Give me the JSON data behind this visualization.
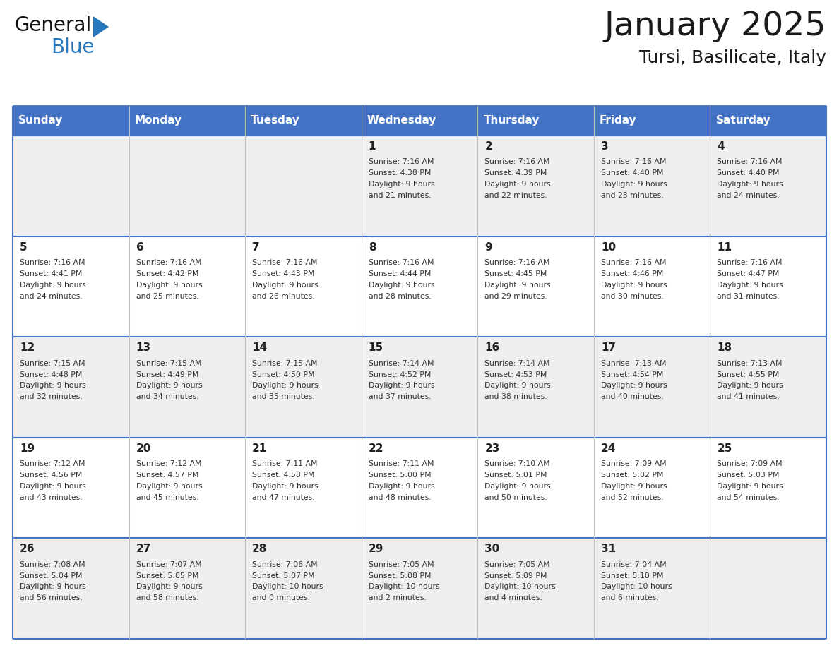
{
  "title": "January 2025",
  "subtitle": "Tursi, Basilicate, Italy",
  "days_of_week": [
    "Sunday",
    "Monday",
    "Tuesday",
    "Wednesday",
    "Thursday",
    "Friday",
    "Saturday"
  ],
  "header_bg_color": "#4472C4",
  "header_text_color": "#FFFFFF",
  "cell_bg_white": "#FFFFFF",
  "cell_bg_grey": "#EFEFEF",
  "grid_line_color": "#4472C4",
  "col_line_color": "#C0C0C0",
  "day_num_color": "#222222",
  "text_color": "#333333",
  "title_color": "#1a1a1a",
  "logo_general_color": "#111111",
  "logo_blue_color": "#2878BE",
  "logo_triangle_color": "#2878BE",
  "calendar_data": [
    {
      "day": 1,
      "col": 3,
      "row": 0,
      "sunrise": "7:16 AM",
      "sunset": "4:38 PM",
      "daylight_hours": 9,
      "daylight_minutes": 21
    },
    {
      "day": 2,
      "col": 4,
      "row": 0,
      "sunrise": "7:16 AM",
      "sunset": "4:39 PM",
      "daylight_hours": 9,
      "daylight_minutes": 22
    },
    {
      "day": 3,
      "col": 5,
      "row": 0,
      "sunrise": "7:16 AM",
      "sunset": "4:40 PM",
      "daylight_hours": 9,
      "daylight_minutes": 23
    },
    {
      "day": 4,
      "col": 6,
      "row": 0,
      "sunrise": "7:16 AM",
      "sunset": "4:40 PM",
      "daylight_hours": 9,
      "daylight_minutes": 24
    },
    {
      "day": 5,
      "col": 0,
      "row": 1,
      "sunrise": "7:16 AM",
      "sunset": "4:41 PM",
      "daylight_hours": 9,
      "daylight_minutes": 24
    },
    {
      "day": 6,
      "col": 1,
      "row": 1,
      "sunrise": "7:16 AM",
      "sunset": "4:42 PM",
      "daylight_hours": 9,
      "daylight_minutes": 25
    },
    {
      "day": 7,
      "col": 2,
      "row": 1,
      "sunrise": "7:16 AM",
      "sunset": "4:43 PM",
      "daylight_hours": 9,
      "daylight_minutes": 26
    },
    {
      "day": 8,
      "col": 3,
      "row": 1,
      "sunrise": "7:16 AM",
      "sunset": "4:44 PM",
      "daylight_hours": 9,
      "daylight_minutes": 28
    },
    {
      "day": 9,
      "col": 4,
      "row": 1,
      "sunrise": "7:16 AM",
      "sunset": "4:45 PM",
      "daylight_hours": 9,
      "daylight_minutes": 29
    },
    {
      "day": 10,
      "col": 5,
      "row": 1,
      "sunrise": "7:16 AM",
      "sunset": "4:46 PM",
      "daylight_hours": 9,
      "daylight_minutes": 30
    },
    {
      "day": 11,
      "col": 6,
      "row": 1,
      "sunrise": "7:16 AM",
      "sunset": "4:47 PM",
      "daylight_hours": 9,
      "daylight_minutes": 31
    },
    {
      "day": 12,
      "col": 0,
      "row": 2,
      "sunrise": "7:15 AM",
      "sunset": "4:48 PM",
      "daylight_hours": 9,
      "daylight_minutes": 32
    },
    {
      "day": 13,
      "col": 1,
      "row": 2,
      "sunrise": "7:15 AM",
      "sunset": "4:49 PM",
      "daylight_hours": 9,
      "daylight_minutes": 34
    },
    {
      "day": 14,
      "col": 2,
      "row": 2,
      "sunrise": "7:15 AM",
      "sunset": "4:50 PM",
      "daylight_hours": 9,
      "daylight_minutes": 35
    },
    {
      "day": 15,
      "col": 3,
      "row": 2,
      "sunrise": "7:14 AM",
      "sunset": "4:52 PM",
      "daylight_hours": 9,
      "daylight_minutes": 37
    },
    {
      "day": 16,
      "col": 4,
      "row": 2,
      "sunrise": "7:14 AM",
      "sunset": "4:53 PM",
      "daylight_hours": 9,
      "daylight_minutes": 38
    },
    {
      "day": 17,
      "col": 5,
      "row": 2,
      "sunrise": "7:13 AM",
      "sunset": "4:54 PM",
      "daylight_hours": 9,
      "daylight_minutes": 40
    },
    {
      "day": 18,
      "col": 6,
      "row": 2,
      "sunrise": "7:13 AM",
      "sunset": "4:55 PM",
      "daylight_hours": 9,
      "daylight_minutes": 41
    },
    {
      "day": 19,
      "col": 0,
      "row": 3,
      "sunrise": "7:12 AM",
      "sunset": "4:56 PM",
      "daylight_hours": 9,
      "daylight_minutes": 43
    },
    {
      "day": 20,
      "col": 1,
      "row": 3,
      "sunrise": "7:12 AM",
      "sunset": "4:57 PM",
      "daylight_hours": 9,
      "daylight_minutes": 45
    },
    {
      "day": 21,
      "col": 2,
      "row": 3,
      "sunrise": "7:11 AM",
      "sunset": "4:58 PM",
      "daylight_hours": 9,
      "daylight_minutes": 47
    },
    {
      "day": 22,
      "col": 3,
      "row": 3,
      "sunrise": "7:11 AM",
      "sunset": "5:00 PM",
      "daylight_hours": 9,
      "daylight_minutes": 48
    },
    {
      "day": 23,
      "col": 4,
      "row": 3,
      "sunrise": "7:10 AM",
      "sunset": "5:01 PM",
      "daylight_hours": 9,
      "daylight_minutes": 50
    },
    {
      "day": 24,
      "col": 5,
      "row": 3,
      "sunrise": "7:09 AM",
      "sunset": "5:02 PM",
      "daylight_hours": 9,
      "daylight_minutes": 52
    },
    {
      "day": 25,
      "col": 6,
      "row": 3,
      "sunrise": "7:09 AM",
      "sunset": "5:03 PM",
      "daylight_hours": 9,
      "daylight_minutes": 54
    },
    {
      "day": 26,
      "col": 0,
      "row": 4,
      "sunrise": "7:08 AM",
      "sunset": "5:04 PM",
      "daylight_hours": 9,
      "daylight_minutes": 56
    },
    {
      "day": 27,
      "col": 1,
      "row": 4,
      "sunrise": "7:07 AM",
      "sunset": "5:05 PM",
      "daylight_hours": 9,
      "daylight_minutes": 58
    },
    {
      "day": 28,
      "col": 2,
      "row": 4,
      "sunrise": "7:06 AM",
      "sunset": "5:07 PM",
      "daylight_hours": 10,
      "daylight_minutes": 0
    },
    {
      "day": 29,
      "col": 3,
      "row": 4,
      "sunrise": "7:05 AM",
      "sunset": "5:08 PM",
      "daylight_hours": 10,
      "daylight_minutes": 2
    },
    {
      "day": 30,
      "col": 4,
      "row": 4,
      "sunrise": "7:05 AM",
      "sunset": "5:09 PM",
      "daylight_hours": 10,
      "daylight_minutes": 4
    },
    {
      "day": 31,
      "col": 5,
      "row": 4,
      "sunrise": "7:04 AM",
      "sunset": "5:10 PM",
      "daylight_hours": 10,
      "daylight_minutes": 6
    }
  ]
}
